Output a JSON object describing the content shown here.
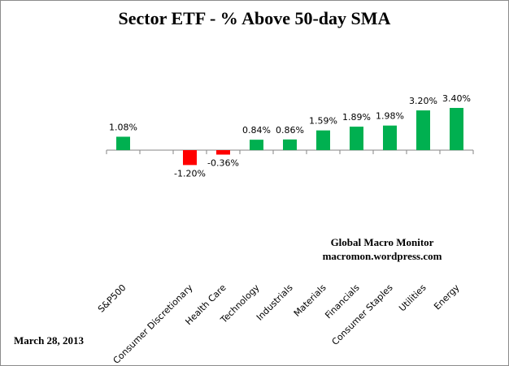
{
  "chart_data": {
    "type": "bar",
    "title": "Sector ETF - % Above 50-day SMA",
    "categories": [
      "S&P500",
      "",
      "Consumer Discretionary",
      "Health Care",
      "Technology",
      "Industrials",
      "Materials",
      "Financials",
      "Consumer Staples",
      "Utilities",
      "Energy"
    ],
    "values": [
      1.08,
      null,
      -1.2,
      -0.36,
      0.84,
      0.86,
      1.59,
      1.89,
      1.98,
      3.2,
      3.4
    ],
    "data_labels": [
      "1.08%",
      "",
      "-1.20%",
      "-0.36%",
      "0.84%",
      "0.86%",
      "1.59%",
      "1.89%",
      "1.98%",
      "3.20%",
      "3.40%"
    ],
    "xlabel": "",
    "ylabel": "",
    "grid": false,
    "colors": {
      "positive": "#00b050",
      "negative": "#ff0000"
    }
  },
  "annotations": {
    "source_line1": "Global Macro Monitor",
    "source_line2": "macromon.wordpress.com",
    "date": "March 28, 2013"
  }
}
